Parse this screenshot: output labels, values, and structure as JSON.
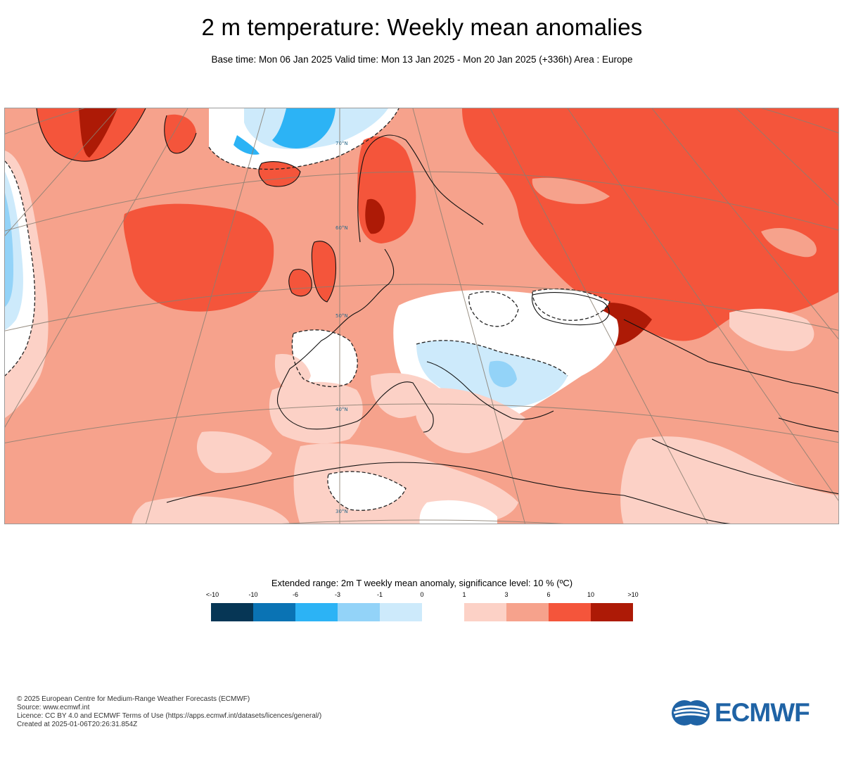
{
  "title": "2 m temperature: Weekly mean anomalies",
  "subtitle": "Base time: Mon 06 Jan 2025 Valid time: Mon 13 Jan 2025 - Mon 20 Jan 2025 (+336h) Area : Europe",
  "map": {
    "lat_labels": [
      "70°N",
      "60°N",
      "50°N",
      "40°N",
      "30°N"
    ],
    "field": "2 m temperature weekly mean anomaly",
    "area": "Europe"
  },
  "legend": {
    "title": "Extended range: 2m T weekly mean anomaly, significance level: 10 % (ºC)",
    "ticks": [
      "<-10",
      "-10",
      "-6",
      "-3",
      "-1",
      "0",
      "1",
      "3",
      "6",
      "10",
      ">10"
    ],
    "colors": [
      "#063655",
      "#0a73b4",
      "#2cb3f5",
      "#93d3f8",
      "#cdeafb",
      "#ffffff",
      "#fcd1c6",
      "#f6a28c",
      "#f4553b",
      "#ad1a06",
      "#5b0e04"
    ]
  },
  "footer": {
    "copyright": "© 2025 European Centre for Medium-Range Weather Forecasts (ECMWF)",
    "source": "Source: www.ecmwf.int",
    "licence": "Licence: CC BY 4.0 and ECMWF Terms of Use (https://apps.ecmwf.int/datasets/licences/general/)",
    "created": "Created at 2025-01-06T20:26:31.854Z"
  },
  "logo": {
    "text": "ECMWF",
    "color": "#1f63a5"
  }
}
